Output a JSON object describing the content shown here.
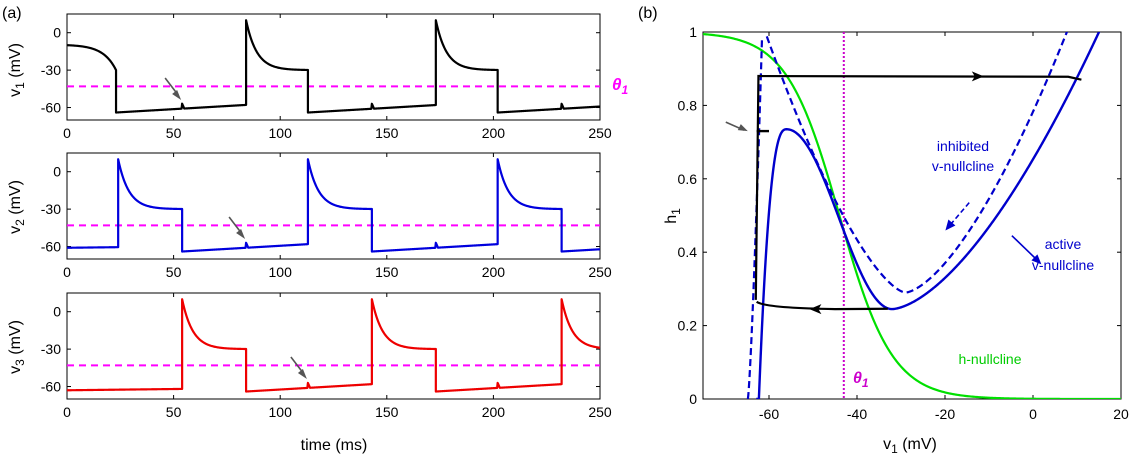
{
  "panel_labels": [
    "(a)",
    "(b)"
  ],
  "colors": {
    "v1": "#000000",
    "v2": "#0000dd",
    "v3": "#ee0000",
    "threshold": "#ff00ff",
    "h_nullcline": "#00e000",
    "v_nullcline": "#0000cc",
    "arrow": "#555555"
  },
  "chart_data": [
    {
      "type": "line",
      "panel": "(a)",
      "ylabel": "v_1 (mV)",
      "xlim": [
        0,
        250
      ],
      "ylim": [
        -70,
        15
      ],
      "xticks": [
        0,
        50,
        100,
        150,
        200,
        250
      ],
      "yticks": [
        0,
        -30,
        -60
      ],
      "threshold": {
        "y": -43,
        "label": "θ1"
      },
      "series": [
        {
          "color_key": "v1",
          "spike_times": [
            84,
            173
          ],
          "initial_decay_end_time": 23,
          "down_times": [
            23,
            113,
            202
          ],
          "start_value": -10,
          "small_event_times": [
            54,
            143,
            232
          ]
        }
      ],
      "annotation_arrow_time": 54
    },
    {
      "type": "line",
      "panel": "(a)",
      "ylabel": "v_2 (mV)",
      "xlim": [
        0,
        250
      ],
      "ylim": [
        -70,
        15
      ],
      "xticks": [
        0,
        50,
        100,
        150,
        200,
        250
      ],
      "yticks": [
        0,
        -30,
        -60
      ],
      "threshold": {
        "y": -43
      },
      "series": [
        {
          "color_key": "v2",
          "spike_times": [
            24,
            113,
            202
          ],
          "down_times": [
            54,
            143,
            232
          ],
          "start_value": -61,
          "small_event_times": [
            84,
            173
          ]
        }
      ],
      "annotation_arrow_time": 84
    },
    {
      "type": "line",
      "panel": "(a)",
      "ylabel": "v_3 (mV)",
      "xlabel": "time (ms)",
      "xlim": [
        0,
        250
      ],
      "ylim": [
        -70,
        15
      ],
      "xticks": [
        0,
        50,
        100,
        150,
        200,
        250
      ],
      "yticks": [
        0,
        -30,
        -60
      ],
      "threshold": {
        "y": -43
      },
      "series": [
        {
          "color_key": "v3",
          "spike_times": [
            54,
            143,
            232
          ],
          "down_times": [
            84,
            173
          ],
          "start_value": -63,
          "small_event_times": [
            24,
            113,
            202
          ]
        }
      ],
      "annotation_arrow_time": 113
    },
    {
      "type": "line",
      "panel": "(b)",
      "xlabel": "v_1 (mV)",
      "ylabel": "h_1",
      "xlim": [
        -75,
        20
      ],
      "ylim": [
        0,
        1
      ],
      "xticks": [
        -60,
        -40,
        -20,
        0,
        20
      ],
      "yticks": [
        0,
        0.2,
        0.4,
        0.6,
        0.8,
        1
      ],
      "threshold_v": {
        "x": -43,
        "label": "θ1"
      },
      "h_nullcline": {
        "label": "h-nullcline",
        "v_half": -44,
        "slope": 6
      },
      "active_v_nullcline": {
        "label": "active\nv-nullcline",
        "min": [
          -32,
          0.245
        ],
        "peak": [
          -56,
          0.735
        ]
      },
      "inhibited_v_nullcline": {
        "label": "inhibited\nv-nullcline",
        "min": [
          -29,
          0.29
        ]
      },
      "trajectory": {
        "upper_h": 0.88,
        "lower_h": 0.25,
        "left_v": -63,
        "right_v": 11,
        "kink": {
          "v": -60,
          "h": 0.73
        }
      }
    }
  ],
  "labels": {
    "theta": "θ",
    "theta_sub": "1",
    "inhibited_1": "inhibited",
    "inhibited_2": "v-nullcline",
    "active_1": "active",
    "active_2": "v-nullcline",
    "h_nullcline": "h-nullcline"
  }
}
